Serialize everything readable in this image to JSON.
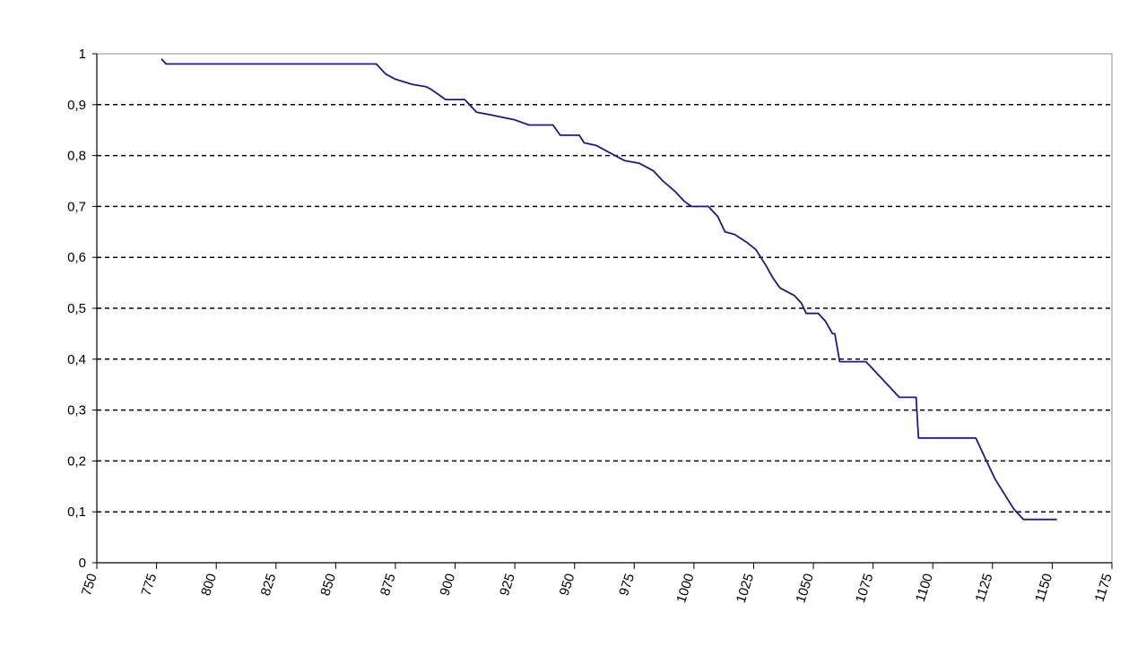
{
  "chart_data": {
    "type": "line",
    "title": "",
    "xlabel": "",
    "ylabel": "",
    "xlim": [
      750,
      1175
    ],
    "ylim": [
      0,
      1
    ],
    "x_ticks": [
      "750",
      "775",
      "800",
      "825",
      "850",
      "875",
      "900",
      "925",
      "950",
      "975",
      "1000",
      "1025",
      "1050",
      "1075",
      "1100",
      "1125",
      "1150",
      "1175"
    ],
    "y_ticks": [
      "0",
      "0,1",
      "0,2",
      "0,3",
      "0,4",
      "0,5",
      "0,6",
      "0,7",
      "0,8",
      "0,9",
      "1"
    ],
    "grid": "horizontal dashed",
    "legend": "none",
    "line_color": "#1a1a8c",
    "series": [
      {
        "points": [
          [
            777,
            0.99
          ],
          [
            779,
            0.98
          ],
          [
            867,
            0.98
          ],
          [
            871,
            0.96
          ],
          [
            875,
            0.95
          ],
          [
            882,
            0.94
          ],
          [
            888,
            0.935
          ],
          [
            890,
            0.93
          ],
          [
            893,
            0.92
          ],
          [
            896,
            0.91
          ],
          [
            904,
            0.91
          ],
          [
            906,
            0.9
          ],
          [
            909,
            0.885
          ],
          [
            915,
            0.88
          ],
          [
            925,
            0.87
          ],
          [
            931,
            0.86
          ],
          [
            941,
            0.86
          ],
          [
            944,
            0.84
          ],
          [
            952,
            0.84
          ],
          [
            954,
            0.825
          ],
          [
            959,
            0.82
          ],
          [
            965,
            0.805
          ],
          [
            971,
            0.79
          ],
          [
            977,
            0.785
          ],
          [
            983,
            0.77
          ],
          [
            987,
            0.75
          ],
          [
            992,
            0.73
          ],
          [
            996,
            0.71
          ],
          [
            999,
            0.7
          ],
          [
            1006,
            0.7
          ],
          [
            1010,
            0.68
          ],
          [
            1013,
            0.65
          ],
          [
            1017,
            0.645
          ],
          [
            1022,
            0.63
          ],
          [
            1026,
            0.615
          ],
          [
            1030,
            0.585
          ],
          [
            1033,
            0.56
          ],
          [
            1036,
            0.54
          ],
          [
            1042,
            0.525
          ],
          [
            1045,
            0.51
          ],
          [
            1047,
            0.49
          ],
          [
            1052,
            0.49
          ],
          [
            1055,
            0.475
          ],
          [
            1058,
            0.45
          ],
          [
            1059,
            0.45
          ],
          [
            1061,
            0.395
          ],
          [
            1072,
            0.395
          ],
          [
            1077,
            0.37
          ],
          [
            1082,
            0.345
          ],
          [
            1086,
            0.325
          ],
          [
            1093,
            0.325
          ],
          [
            1094,
            0.245
          ],
          [
            1118,
            0.245
          ],
          [
            1122,
            0.205
          ],
          [
            1126,
            0.165
          ],
          [
            1130,
            0.135
          ],
          [
            1134,
            0.105
          ],
          [
            1138,
            0.085
          ],
          [
            1152,
            0.085
          ]
        ]
      }
    ]
  }
}
